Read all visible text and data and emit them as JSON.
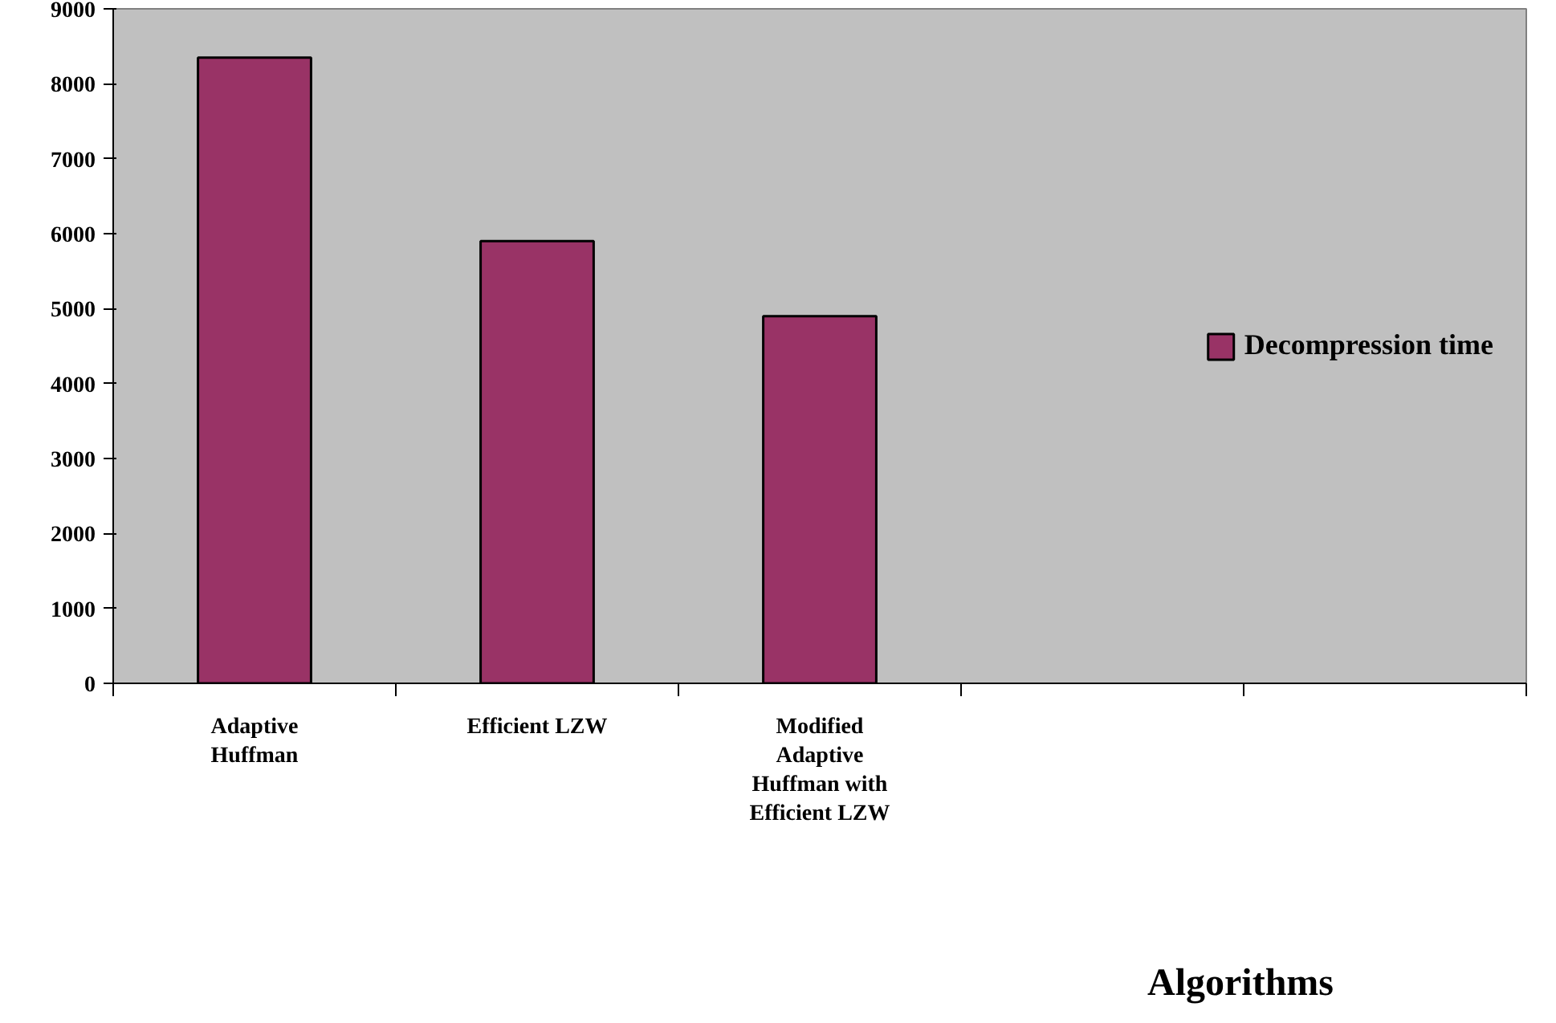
{
  "chart_data": {
    "type": "bar",
    "xlabel": "Algorithms",
    "categories": [
      "Adaptive Huffman",
      "Efficient LZW",
      "Modified Adaptive Huffman with Efficient LZW",
      null,
      null
    ],
    "series": [
      {
        "name": "Decompression time",
        "color": "#993366",
        "values": [
          8350,
          5900,
          4900,
          null,
          null
        ]
      }
    ],
    "ylim": [
      0,
      9000
    ],
    "yticks": [
      0,
      1000,
      2000,
      3000,
      4000,
      5000,
      6000,
      7000,
      8000,
      9000
    ],
    "grid": false,
    "legend": "right"
  }
}
